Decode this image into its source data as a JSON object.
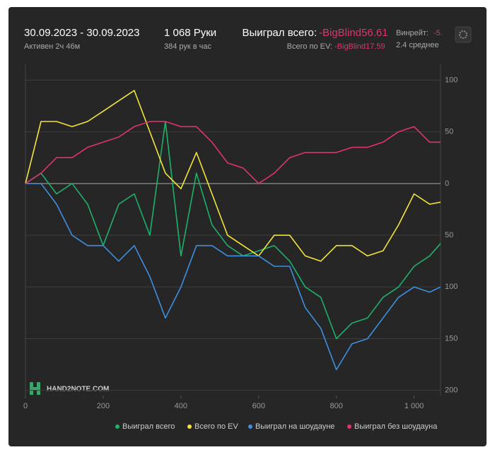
{
  "header": {
    "date_range": "30.09.2023 - 30.09.2023",
    "active": "Активен 2ч 46м",
    "hands": "1 068 Руки",
    "hands_per_hour": "384 рук в час",
    "won_label": "Выиграл всего:",
    "won_value": "-BigBlind56.61",
    "ev_label": "Всего по EV:",
    "ev_value": "-BigBlind17.59",
    "winrate_label": "Винрейт:",
    "winrate_value": "-5.",
    "average": "2.4 среднее",
    "watermark": "HAND2NOTE.COM"
  },
  "chart_data": {
    "type": "line",
    "x": [
      0,
      40,
      80,
      120,
      160,
      200,
      240,
      280,
      320,
      360,
      400,
      440,
      480,
      520,
      560,
      600,
      640,
      680,
      720,
      760,
      800,
      840,
      880,
      920,
      960,
      1000,
      1040,
      1068
    ],
    "series": [
      {
        "name": "Выиграл всего",
        "color": "#1db16a",
        "values": [
          0,
          10,
          -10,
          0,
          -20,
          -60,
          -20,
          -10,
          -50,
          60,
          -70,
          10,
          -40,
          -60,
          -70,
          -65,
          -60,
          -75,
          -100,
          -110,
          -150,
          -135,
          -130,
          -110,
          -100,
          -80,
          -70,
          -58
        ]
      },
      {
        "name": "Всего по EV",
        "color": "#f2e53a",
        "values": [
          0,
          60,
          60,
          55,
          60,
          70,
          80,
          90,
          50,
          10,
          -5,
          30,
          -10,
          -50,
          -60,
          -70,
          -50,
          -50,
          -70,
          -75,
          -60,
          -60,
          -70,
          -65,
          -40,
          -10,
          -20,
          -18
        ]
      },
      {
        "name": "Выиграл на шоудауне",
        "color": "#3d8fe0",
        "values": [
          0,
          0,
          -20,
          -50,
          -60,
          -60,
          -75,
          -60,
          -90,
          -130,
          -100,
          -60,
          -60,
          -70,
          -70,
          -70,
          -80,
          -80,
          -120,
          -140,
          -180,
          -155,
          -150,
          -130,
          -110,
          -100,
          -105,
          -100
        ]
      },
      {
        "name": "Выиграл без шоудауна",
        "color": "#e0336e",
        "values": [
          0,
          10,
          25,
          25,
          35,
          40,
          45,
          55,
          60,
          60,
          55,
          55,
          40,
          20,
          15,
          0,
          10,
          25,
          30,
          30,
          30,
          35,
          35,
          40,
          50,
          55,
          40,
          40
        ]
      }
    ],
    "xlim": [
      0,
      1068
    ],
    "xticks": [
      0,
      200,
      400,
      600,
      800,
      {
        "value": 1000,
        "label": "1 000"
      }
    ],
    "ylim": [
      -205,
      116
    ],
    "yticks": [
      100,
      50,
      0,
      {
        "value": -50,
        "label": "50"
      },
      {
        "value": -100,
        "label": "100"
      },
      {
        "value": -150,
        "label": "150"
      },
      {
        "value": -200,
        "label": "200"
      }
    ],
    "grid": true
  }
}
